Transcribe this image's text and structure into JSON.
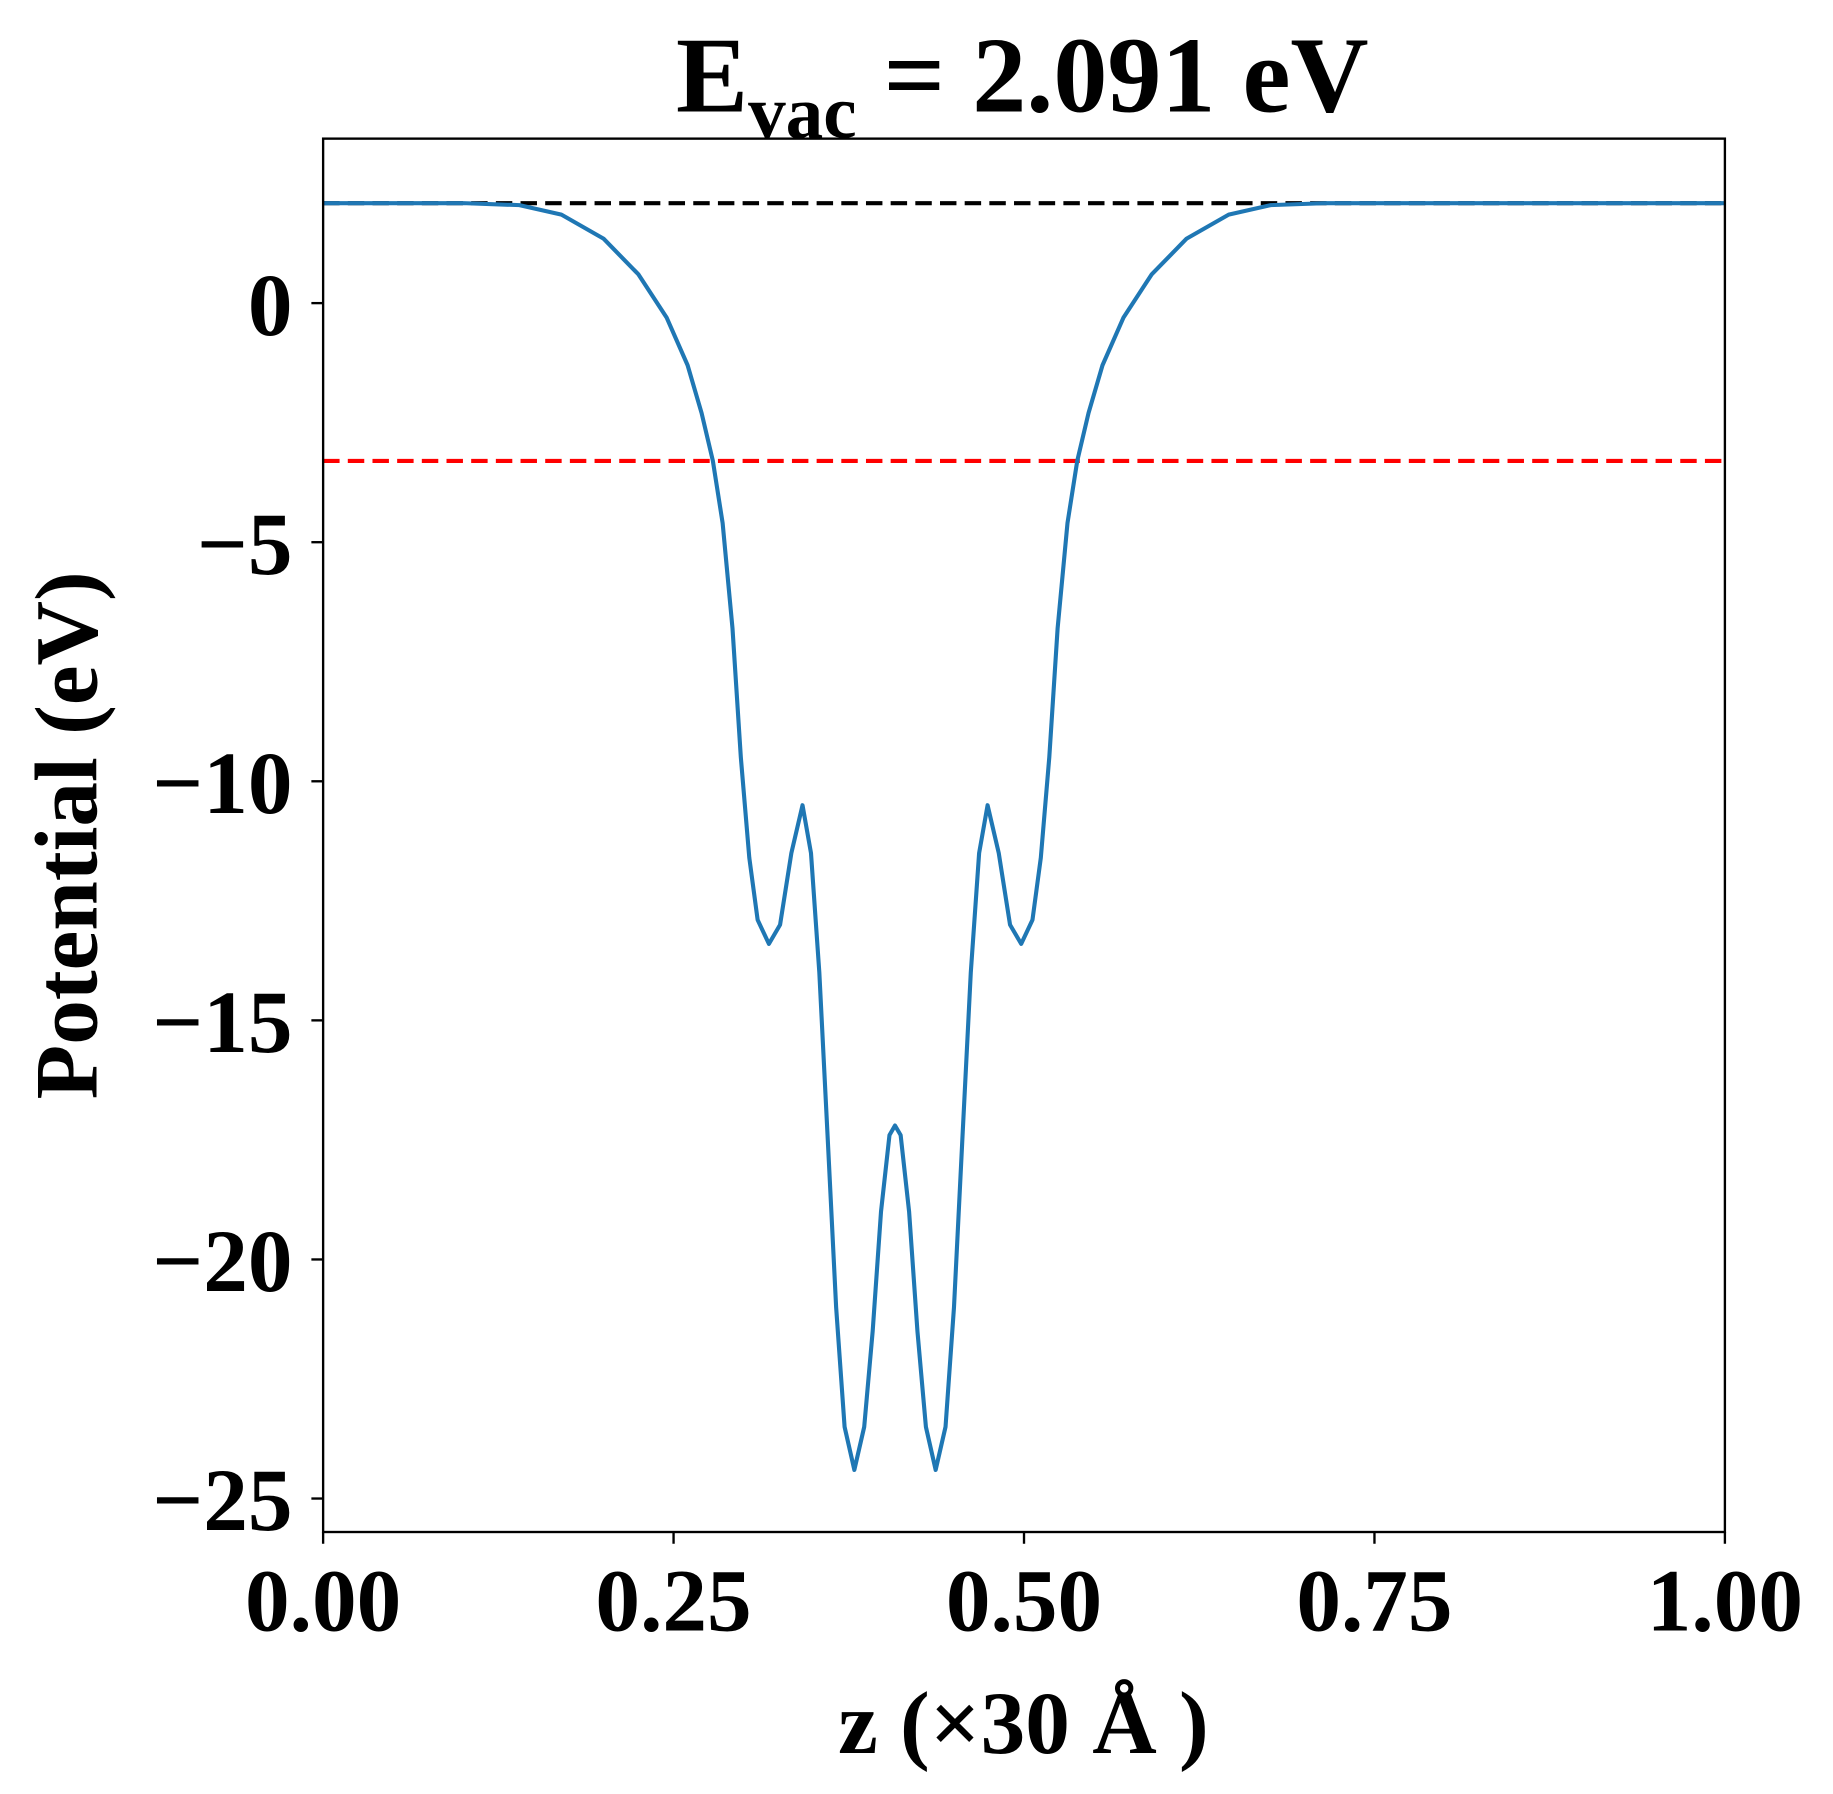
{
  "chart_data": {
    "type": "line",
    "title": {
      "main": "E",
      "subscript": "vac",
      "rest": " = 2.091 eV"
    },
    "xlabel": "z (×30 Å )",
    "ylabel": "Potential (eV)",
    "xlim": [
      0,
      1
    ],
    "ylim": [
      -25.7,
      3.44
    ],
    "xticks": [
      0,
      0.25,
      0.5,
      0.75,
      1.0
    ],
    "xtick_labels": [
      "0.00",
      "0.25",
      "0.50",
      "0.75",
      "1.00"
    ],
    "yticks": [
      0,
      -5,
      -10,
      -15,
      -20,
      -25
    ],
    "ytick_labels": [
      "0",
      "−5",
      "−10",
      "−15",
      "−20",
      "−25"
    ],
    "grid": false,
    "reference_lines": [
      {
        "y": 2.091,
        "color": "#000000",
        "style": "dashed"
      },
      {
        "y": -3.3,
        "color": "#ff0000",
        "style": "dashed"
      }
    ],
    "series": [
      {
        "color": "#1f77b4",
        "x": [
          0.0,
          0.1,
          0.14,
          0.17,
          0.2,
          0.225,
          0.245,
          0.26,
          0.27,
          0.278,
          0.285,
          0.292,
          0.298,
          0.304,
          0.31,
          0.318,
          0.326,
          0.334,
          0.342,
          0.348,
          0.354,
          0.36,
          0.366,
          0.372,
          0.379,
          0.386,
          0.392,
          0.398,
          0.404,
          0.408,
          0.412,
          0.418,
          0.424,
          0.43,
          0.437,
          0.444,
          0.45,
          0.456,
          0.462,
          0.468,
          0.474,
          0.482,
          0.49,
          0.498,
          0.506,
          0.512,
          0.518,
          0.524,
          0.531,
          0.538,
          0.546,
          0.556,
          0.571,
          0.591,
          0.616,
          0.646,
          0.676,
          0.716,
          1.0
        ],
        "y": [
          2.09,
          2.09,
          2.05,
          1.85,
          1.35,
          0.6,
          -0.3,
          -1.3,
          -2.3,
          -3.3,
          -4.6,
          -6.8,
          -9.5,
          -11.6,
          -12.9,
          -13.4,
          -13.0,
          -11.5,
          -10.5,
          -11.5,
          -14.0,
          -17.5,
          -21.0,
          -23.5,
          -24.4,
          -23.5,
          -21.5,
          -19.0,
          -17.4,
          -17.2,
          -17.4,
          -19.0,
          -21.5,
          -23.5,
          -24.4,
          -23.5,
          -21.0,
          -17.5,
          -14.0,
          -11.5,
          -10.5,
          -11.5,
          -13.0,
          -13.4,
          -12.9,
          -11.6,
          -9.5,
          -6.8,
          -4.6,
          -3.3,
          -2.3,
          -1.3,
          -0.3,
          0.6,
          1.35,
          1.85,
          2.05,
          2.09,
          2.09
        ]
      }
    ]
  }
}
